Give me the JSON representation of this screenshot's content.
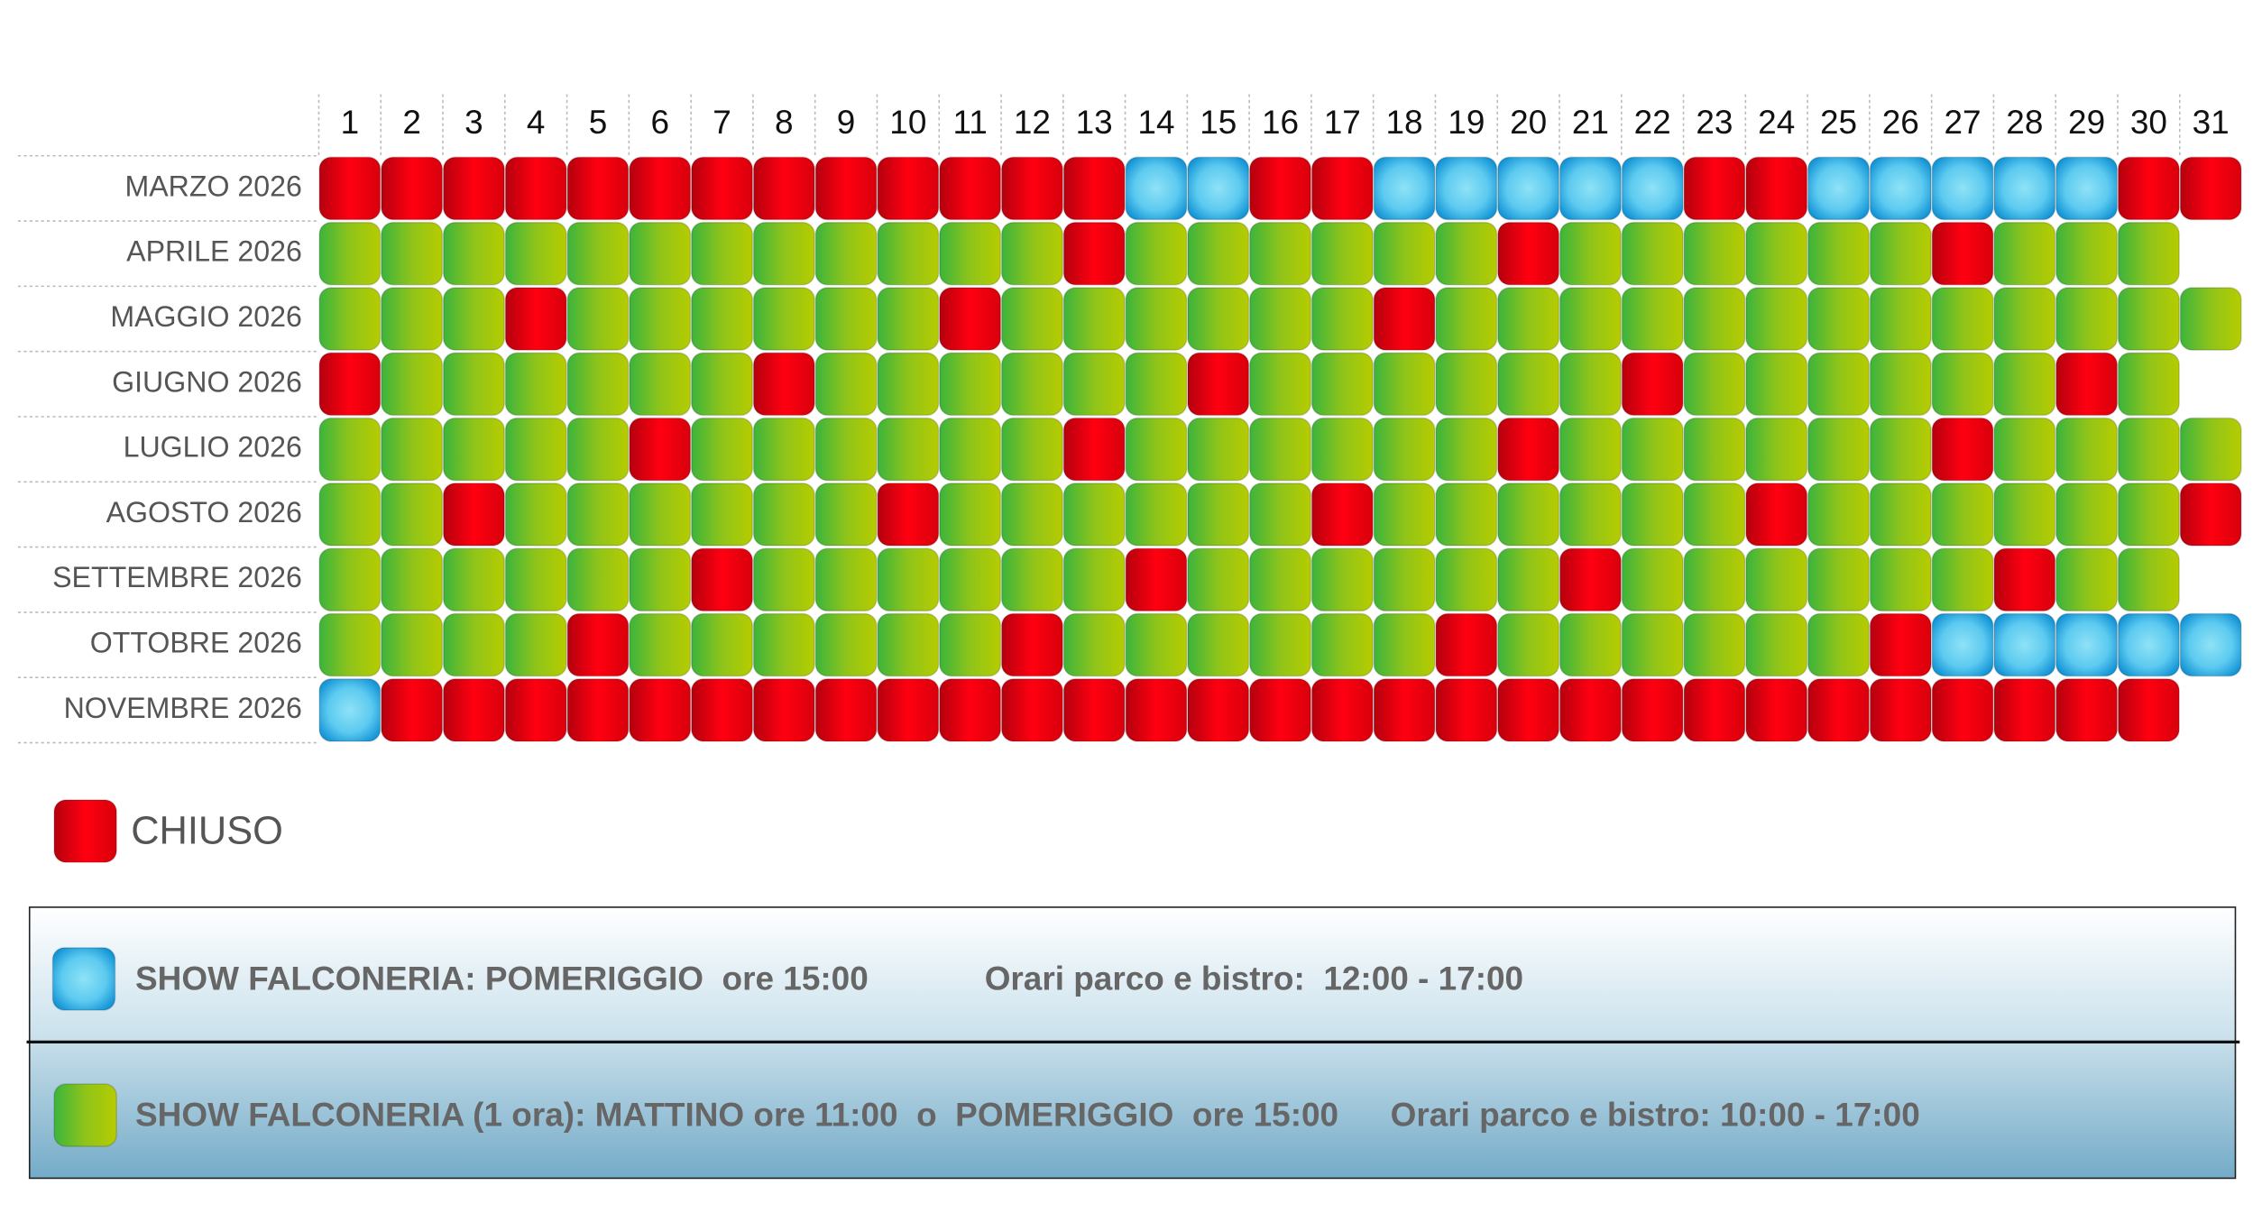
{
  "days": [
    1,
    2,
    3,
    4,
    5,
    6,
    7,
    8,
    9,
    10,
    11,
    12,
    13,
    14,
    15,
    16,
    17,
    18,
    19,
    20,
    21,
    22,
    23,
    24,
    25,
    26,
    27,
    28,
    29,
    30,
    31
  ],
  "months": [
    {
      "label": "MARZO 2026",
      "days": [
        "red",
        "red",
        "red",
        "red",
        "red",
        "red",
        "red",
        "red",
        "red",
        "red",
        "red",
        "red",
        "red",
        "blue",
        "blue",
        "red",
        "red",
        "blue",
        "blue",
        "blue",
        "blue",
        "blue",
        "red",
        "red",
        "blue",
        "blue",
        "blue",
        "blue",
        "blue",
        "red",
        "red"
      ]
    },
    {
      "label": "APRILE 2026",
      "days": [
        "green",
        "green",
        "green",
        "green",
        "green",
        "green",
        "green",
        "green",
        "green",
        "green",
        "green",
        "green",
        "red",
        "green",
        "green",
        "green",
        "green",
        "green",
        "green",
        "red",
        "green",
        "green",
        "green",
        "green",
        "green",
        "green",
        "red",
        "green",
        "green",
        "green"
      ]
    },
    {
      "label": "MAGGIO 2026",
      "days": [
        "green",
        "green",
        "green",
        "red",
        "green",
        "green",
        "green",
        "green",
        "green",
        "green",
        "red",
        "green",
        "green",
        "green",
        "green",
        "green",
        "green",
        "red",
        "green",
        "green",
        "green",
        "green",
        "green",
        "green",
        "green",
        "green",
        "green",
        "green",
        "green",
        "green",
        "green"
      ]
    },
    {
      "label": "GIUGNO 2026",
      "days": [
        "red",
        "green",
        "green",
        "green",
        "green",
        "green",
        "green",
        "red",
        "green",
        "green",
        "green",
        "green",
        "green",
        "green",
        "red",
        "green",
        "green",
        "green",
        "green",
        "green",
        "green",
        "red",
        "green",
        "green",
        "green",
        "green",
        "green",
        "green",
        "red",
        "green"
      ]
    },
    {
      "label": "LUGLIO 2026",
      "days": [
        "green",
        "green",
        "green",
        "green",
        "green",
        "red",
        "green",
        "green",
        "green",
        "green",
        "green",
        "green",
        "red",
        "green",
        "green",
        "green",
        "green",
        "green",
        "green",
        "red",
        "green",
        "green",
        "green",
        "green",
        "green",
        "green",
        "red",
        "green",
        "green",
        "green",
        "green"
      ]
    },
    {
      "label": "AGOSTO 2026",
      "days": [
        "green",
        "green",
        "red",
        "green",
        "green",
        "green",
        "green",
        "green",
        "green",
        "red",
        "green",
        "green",
        "green",
        "green",
        "green",
        "green",
        "red",
        "green",
        "green",
        "green",
        "green",
        "green",
        "green",
        "red",
        "green",
        "green",
        "green",
        "green",
        "green",
        "green",
        "red"
      ]
    },
    {
      "label": "SETTEMBRE 2026",
      "days": [
        "green",
        "green",
        "green",
        "green",
        "green",
        "green",
        "red",
        "green",
        "green",
        "green",
        "green",
        "green",
        "green",
        "red",
        "green",
        "green",
        "green",
        "green",
        "green",
        "green",
        "red",
        "green",
        "green",
        "green",
        "green",
        "green",
        "green",
        "red",
        "green",
        "green"
      ]
    },
    {
      "label": "OTTOBRE 2026",
      "days": [
        "green",
        "green",
        "green",
        "green",
        "red",
        "green",
        "green",
        "green",
        "green",
        "green",
        "green",
        "red",
        "green",
        "green",
        "green",
        "green",
        "green",
        "green",
        "red",
        "green",
        "green",
        "green",
        "green",
        "green",
        "green",
        "red",
        "blue",
        "blue",
        "blue",
        "blue",
        "blue"
      ]
    },
    {
      "label": "NOVEMBRE 2026",
      "days": [
        "blue",
        "red",
        "red",
        "red",
        "red",
        "red",
        "red",
        "red",
        "red",
        "red",
        "red",
        "red",
        "red",
        "red",
        "red",
        "red",
        "red",
        "red",
        "red",
        "red",
        "red",
        "red",
        "red",
        "red",
        "red",
        "red",
        "red",
        "red",
        "red",
        "red"
      ]
    }
  ],
  "legend": [
    {
      "color": "red",
      "texts": [
        "CHIUSO"
      ]
    },
    {
      "color": "blue",
      "texts": [
        "SHOW FALCONERIA: POMERIGGIO  ore 15:00",
        "Orari parco e bistro:  12:00 - 17:00"
      ]
    },
    {
      "color": "green",
      "texts": [
        "SHOW FALCONERIA (1 ora): MATTINO ore 11:00  o  POMERIGGIO  ore 15:00",
        "Orari parco e bistro: 10:00 - 17:00"
      ]
    }
  ]
}
